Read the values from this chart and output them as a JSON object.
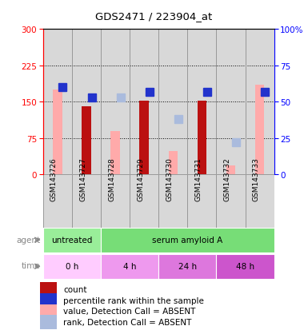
{
  "title": "GDS2471 / 223904_at",
  "samples": [
    "GSM143726",
    "GSM143727",
    "GSM143728",
    "GSM143729",
    "GSM143730",
    "GSM143731",
    "GSM143732",
    "GSM143733"
  ],
  "count_values": [
    null,
    140,
    null,
    152,
    null,
    153,
    null,
    null
  ],
  "count_absent_values": [
    175,
    null,
    90,
    null,
    48,
    null,
    18,
    185
  ],
  "rank_present": [
    60,
    53,
    null,
    57,
    null,
    57,
    null,
    57
  ],
  "rank_absent": [
    null,
    null,
    53,
    null,
    38,
    null,
    22,
    null
  ],
  "ylim_left": [
    0,
    300
  ],
  "ylim_right": [
    0,
    100
  ],
  "yticks_left": [
    0,
    75,
    150,
    225,
    300
  ],
  "yticks_right": [
    0,
    25,
    50,
    75,
    100
  ],
  "ytick_labels_left": [
    "0",
    "75",
    "150",
    "225",
    "300"
  ],
  "ytick_labels_right": [
    "0",
    "25",
    "50",
    "75",
    "100%"
  ],
  "color_count": "#bb1111",
  "color_rank_present": "#2233cc",
  "color_count_absent": "#ffaaaa",
  "color_rank_absent": "#aabbdd",
  "agent_labels": [
    {
      "label": "untreated",
      "span": [
        0,
        2
      ],
      "color": "#99ee99"
    },
    {
      "label": "serum amyloid A",
      "span": [
        2,
        8
      ],
      "color": "#77dd77"
    }
  ],
  "time_labels": [
    {
      "label": "0 h",
      "span": [
        0,
        2
      ],
      "color": "#ffccff"
    },
    {
      "label": "4 h",
      "span": [
        2,
        4
      ],
      "color": "#ee99ee"
    },
    {
      "label": "24 h",
      "span": [
        4,
        6
      ],
      "color": "#dd77dd"
    },
    {
      "label": "48 h",
      "span": [
        6,
        8
      ],
      "color": "#cc55cc"
    }
  ],
  "legend_items": [
    {
      "color": "#bb1111",
      "label": "count"
    },
    {
      "color": "#2233cc",
      "label": "percentile rank within the sample"
    },
    {
      "color": "#ffaaaa",
      "label": "value, Detection Call = ABSENT"
    },
    {
      "color": "#aabbdd",
      "label": "rank, Detection Call = ABSENT"
    }
  ],
  "gray_col": "#d8d8d8",
  "col_border": "#999999"
}
